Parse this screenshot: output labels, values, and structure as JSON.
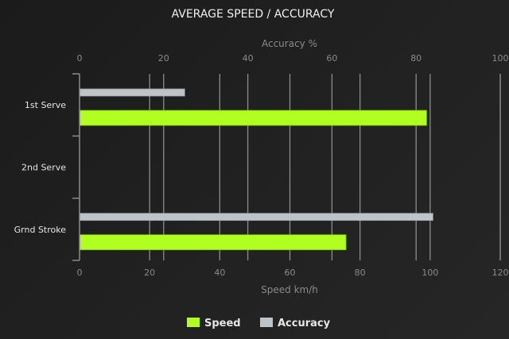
{
  "chart_data": {
    "type": "bar",
    "orientation": "horizontal",
    "title": "AVERAGE SPEED / ACCURACY",
    "categories": [
      "1st Serve",
      "2nd Serve",
      "Grnd Stroke"
    ],
    "series": [
      {
        "name": "Speed",
        "axis": "bottom",
        "color": "#b0ff20",
        "values": [
          99,
          null,
          76
        ]
      },
      {
        "name": "Accuracy",
        "axis": "top",
        "color": "#bdc3c7",
        "values": [
          25,
          null,
          84
        ]
      }
    ],
    "x_bottom": {
      "label": "Speed km/h",
      "range": [
        0,
        120
      ],
      "ticks": [
        0,
        20,
        40,
        60,
        80,
        100,
        120
      ]
    },
    "x_top": {
      "label": "Accuracy %",
      "range": [
        0,
        100
      ],
      "ticks": [
        0,
        20,
        40,
        60,
        80,
        100
      ]
    },
    "grid": true,
    "legend_position": "bottom"
  }
}
